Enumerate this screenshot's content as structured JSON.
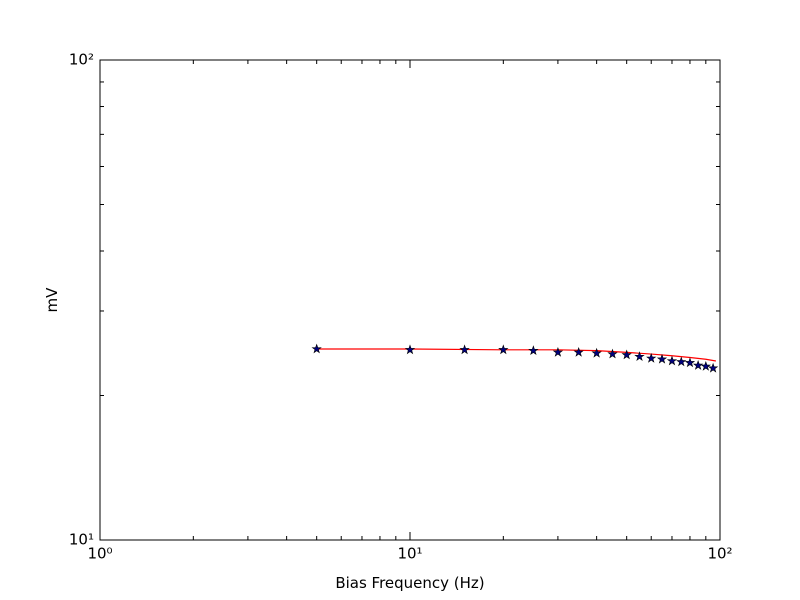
{
  "chart_data": {
    "type": "line",
    "xlabel": "Bias Frequency (Hz)",
    "ylabel": "mV",
    "xscale": "log",
    "yscale": "log",
    "xlim": [
      1,
      100
    ],
    "ylim": [
      10,
      100
    ],
    "xticks": [
      {
        "value": 1,
        "label": "10⁰"
      },
      {
        "value": 10,
        "label": "10¹"
      },
      {
        "value": 100,
        "label": "10²"
      }
    ],
    "yticks": [
      {
        "value": 10,
        "label": "10¹"
      },
      {
        "value": 100,
        "label": "10²"
      }
    ],
    "xminorticks": [
      2,
      3,
      4,
      5,
      6,
      7,
      8,
      9,
      20,
      30,
      40,
      50,
      60,
      70,
      80,
      90
    ],
    "yminorticks": [
      20,
      30,
      40,
      50,
      60,
      70,
      80,
      90
    ],
    "series": [
      {
        "color": "#ff0000",
        "style": "line",
        "x": [
          5,
          10,
          20,
          30,
          40,
          50,
          60,
          70,
          80,
          90,
          97
        ],
        "values": [
          25.0,
          25.0,
          24.9,
          24.9,
          24.8,
          24.6,
          24.4,
          24.2,
          24.0,
          23.8,
          23.6
        ]
      },
      {
        "color": "#000080",
        "style": "star",
        "x": [
          5,
          10,
          15,
          20,
          25,
          30,
          35,
          40,
          45,
          50,
          55,
          60,
          65,
          70,
          75,
          80,
          85,
          90,
          95
        ],
        "values": [
          25.0,
          24.9,
          24.9,
          24.9,
          24.8,
          24.6,
          24.6,
          24.5,
          24.4,
          24.3,
          24.1,
          23.9,
          23.8,
          23.6,
          23.5,
          23.4,
          23.1,
          23.0,
          22.8
        ]
      }
    ]
  }
}
